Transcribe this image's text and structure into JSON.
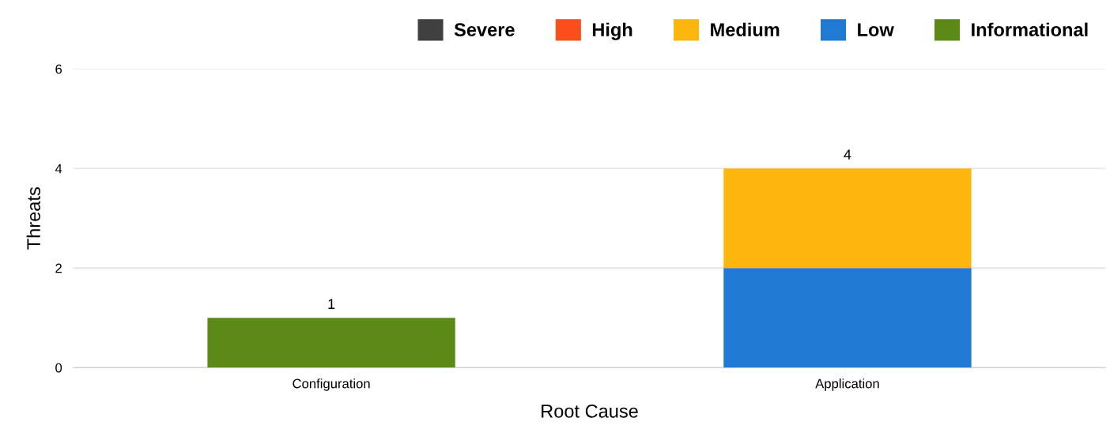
{
  "chart_data": {
    "type": "bar",
    "stacked": true,
    "xlabel": "Root Cause",
    "ylabel": "Threats",
    "categories": [
      "Configuration",
      "Application"
    ],
    "series": [
      {
        "name": "Informational",
        "color": "#5b8a16",
        "values": [
          1,
          0
        ]
      },
      {
        "name": "Low",
        "color": "#2079d2",
        "values": [
          0,
          2
        ]
      },
      {
        "name": "Medium",
        "color": "#fdb60d",
        "values": [
          0,
          2
        ]
      },
      {
        "name": "High",
        "color": "#fc4e1a",
        "values": [
          0,
          0
        ]
      },
      {
        "name": "Severe",
        "color": "#404040",
        "values": [
          0,
          0
        ]
      }
    ],
    "totals": [
      "1",
      "4"
    ],
    "ylim": [
      0,
      6
    ],
    "yticks": [
      0,
      2,
      4,
      6
    ],
    "grid": "y",
    "legend": "top"
  }
}
